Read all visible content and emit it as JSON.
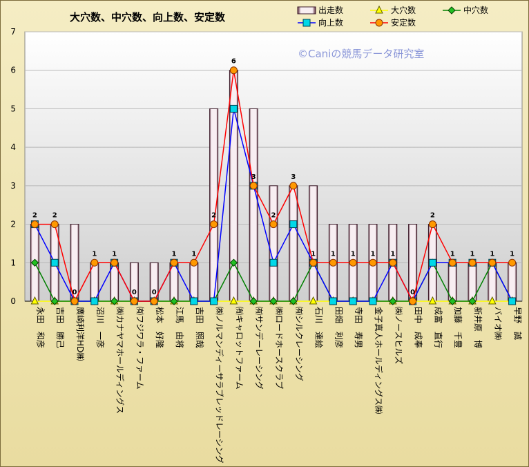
{
  "chart_data": {
    "type": "bar",
    "title": "大穴数、中穴数、向上数、安定数",
    "watermark": "©Caniの競馬データ研究室",
    "ylim": [
      0,
      7
    ],
    "yticks": [
      0,
      1,
      2,
      3,
      4,
      5,
      6,
      7
    ],
    "grid": true,
    "legend_position": "top-right",
    "categories": [
      "永田　和彦",
      "吉田　勝己",
      "廣崎利洋HD㈱",
      "沼川　一彦",
      "㈱カナヤマホールディングス",
      "㈲フジワラ・ファーム",
      "松本　好隆",
      "江馬　由将",
      "吉田　照哉",
      "㈱ノルマンディーサラブレッドレーシング",
      "㈲キャロットファーム",
      "㈲サンデーレーシング",
      "㈱ロードホースクラブ",
      "㈲シルクレーシング",
      "石川　達絵",
      "田畑　利彦",
      "寺田　寿男",
      "金子真人ホールディングス㈱",
      "㈱ノースヒルズ",
      "田中　成奉",
      "成富　直行",
      "加藤　千豊",
      "新井原　博",
      "バイオ㈱",
      "早野　誠"
    ],
    "series": [
      {
        "name": "出走数",
        "kind": "bar",
        "color": "#f3e6ec",
        "values": [
          2,
          2,
          2,
          1,
          1,
          1,
          1,
          1,
          1,
          5,
          6,
          5,
          3,
          3,
          3,
          2,
          2,
          2,
          2,
          2,
          2,
          1,
          1,
          1,
          1
        ]
      },
      {
        "name": "大穴数",
        "kind": "line",
        "color": "#ffff00",
        "marker": "triangle",
        "values": [
          0,
          0,
          0,
          0,
          0,
          0,
          0,
          0,
          0,
          0,
          0,
          0,
          0,
          0,
          0,
          0,
          0,
          0,
          0,
          0,
          0,
          0,
          0,
          0,
          0
        ]
      },
      {
        "name": "中穴数",
        "kind": "line",
        "color": "#008000",
        "marker": "diamond",
        "values": [
          1,
          0,
          0,
          0,
          0,
          0,
          0,
          0,
          0,
          0,
          1,
          0,
          0,
          0,
          1,
          0,
          0,
          0,
          0,
          0,
          1,
          0,
          0,
          1,
          0
        ]
      },
      {
        "name": "向上数",
        "kind": "line",
        "color": "#0000ff",
        "marker": "square",
        "values": [
          2,
          1,
          0,
          0,
          1,
          0,
          0,
          1,
          0,
          0,
          5,
          3,
          1,
          2,
          1,
          0,
          0,
          0,
          1,
          0,
          1,
          1,
          1,
          1,
          0
        ]
      },
      {
        "name": "安定数",
        "kind": "line",
        "color": "#ff0000",
        "marker": "circle",
        "values": [
          2,
          2,
          0,
          1,
          1,
          0,
          0,
          1,
          1,
          2,
          6,
          3,
          2,
          3,
          1,
          1,
          1,
          1,
          1,
          0,
          2,
          1,
          1,
          1,
          1
        ]
      }
    ],
    "data_labels": [
      "2",
      "2",
      "0",
      "1",
      "1",
      "0",
      "0",
      "1",
      "1",
      "2",
      "6",
      "3",
      "2",
      "3",
      "1",
      "1",
      "1",
      "1",
      "1",
      "0",
      "2",
      "1",
      "1",
      "1",
      "1"
    ]
  }
}
